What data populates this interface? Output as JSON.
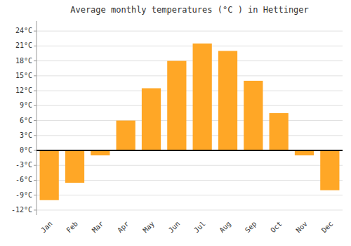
{
  "chart_data": {
    "type": "bar",
    "title": "Average monthly temperatures (°C ) in Hettinger",
    "categories": [
      "Jan",
      "Feb",
      "Mar",
      "Apr",
      "May",
      "Jun",
      "Jul",
      "Aug",
      "Sep",
      "Oct",
      "Nov",
      "Dec"
    ],
    "values": [
      -10,
      -6.5,
      -1,
      6,
      12.5,
      18,
      21.5,
      20,
      14,
      7.5,
      -1,
      -8
    ],
    "color": "#FFA726",
    "ylim": [
      -13,
      26
    ],
    "yticks": [
      {
        "value": -12,
        "label": "-12°C"
      },
      {
        "value": -9,
        "label": "-9°C"
      },
      {
        "value": -6,
        "label": "-6°C"
      },
      {
        "value": -3,
        "label": "-3°C"
      },
      {
        "value": 0,
        "label": "0°C"
      },
      {
        "value": 3,
        "label": "3°C"
      },
      {
        "value": 6,
        "label": "6°C"
      },
      {
        "value": 9,
        "label": "9°C"
      },
      {
        "value": 12,
        "label": "12°C"
      },
      {
        "value": 15,
        "label": "15°C"
      },
      {
        "value": 18,
        "label": "18°C"
      },
      {
        "value": 21,
        "label": "21°C"
      },
      {
        "value": 24,
        "label": "24°C"
      }
    ],
    "grid": true
  }
}
